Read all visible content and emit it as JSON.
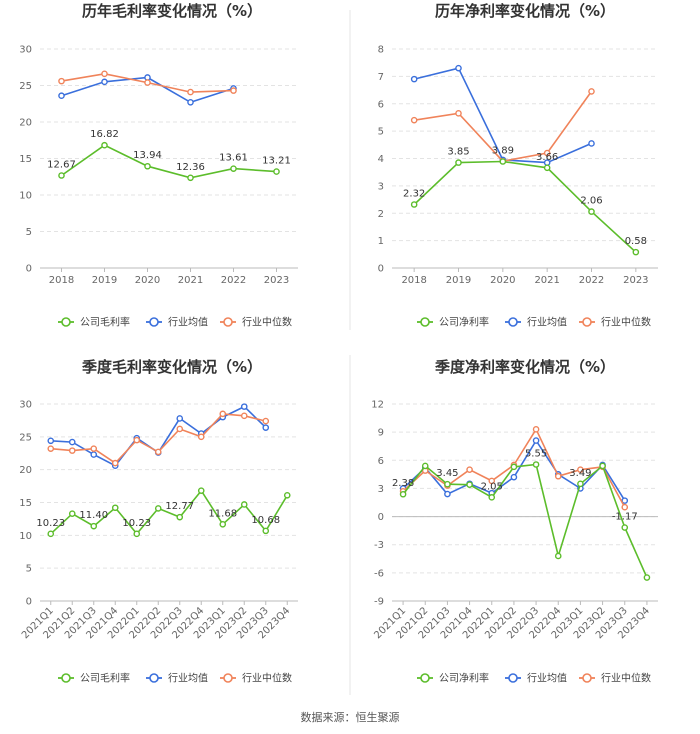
{
  "colors": {
    "company": "#5cbd2b",
    "average": "#3a6fdc",
    "median": "#f0835a"
  },
  "source": "数据来源：恒生聚源",
  "chart_data": [
    {
      "type": "line",
      "title": "历年毛利率变化情况（%）",
      "categories": [
        "2018",
        "2019",
        "2020",
        "2021",
        "2022",
        "2023"
      ],
      "ylim": [
        0,
        30
      ],
      "yticks": [
        0,
        5,
        10,
        15,
        20,
        25,
        30
      ],
      "grid": true,
      "legend": "bottom",
      "series": [
        {
          "name": "公司毛利率",
          "color": "#5cbd2b",
          "values": [
            12.67,
            16.82,
            13.94,
            12.36,
            13.61,
            13.21
          ],
          "labels": [
            "12.67",
            "16.82",
            "13.94",
            "12.36",
            "13.61",
            "13.21"
          ]
        },
        {
          "name": "行业均值",
          "color": "#3a6fdc",
          "values": [
            23.6,
            25.5,
            26.1,
            22.7,
            24.6,
            null
          ]
        },
        {
          "name": "行业中位数",
          "color": "#f0835a",
          "values": [
            25.6,
            26.6,
            25.4,
            24.1,
            24.3,
            null
          ]
        }
      ]
    },
    {
      "type": "line",
      "title": "历年净利率变化情况（%）",
      "categories": [
        "2018",
        "2019",
        "2020",
        "2021",
        "2022",
        "2023"
      ],
      "ylim": [
        0,
        8
      ],
      "yticks": [
        0,
        1,
        2,
        3,
        4,
        5,
        6,
        7,
        8
      ],
      "grid": true,
      "legend": "bottom",
      "series": [
        {
          "name": "公司净利率",
          "color": "#5cbd2b",
          "values": [
            2.32,
            3.85,
            3.89,
            3.66,
            2.06,
            0.58
          ],
          "labels": [
            "2.32",
            "3.85",
            "3.89",
            "3.66",
            "2.06",
            "0.58"
          ]
        },
        {
          "name": "行业均值",
          "color": "#3a6fdc",
          "values": [
            6.9,
            7.3,
            3.95,
            3.85,
            4.55,
            null
          ]
        },
        {
          "name": "行业中位数",
          "color": "#f0835a",
          "values": [
            5.4,
            5.65,
            3.9,
            4.2,
            6.45,
            null
          ]
        }
      ]
    },
    {
      "type": "line",
      "title": "季度毛利率变化情况（%）",
      "categories": [
        "2021Q1",
        "2021Q2",
        "2021Q3",
        "2021Q4",
        "2022Q1",
        "2022Q2",
        "2022Q3",
        "2022Q4",
        "2023Q1",
        "2023Q2",
        "2023Q3",
        "2023Q4"
      ],
      "ylim": [
        0,
        30
      ],
      "yticks": [
        0,
        5,
        10,
        15,
        20,
        25,
        30
      ],
      "grid": true,
      "legend": "bottom",
      "rotate_x": true,
      "series": [
        {
          "name": "公司毛利率",
          "color": "#5cbd2b",
          "values": [
            10.23,
            13.3,
            11.4,
            14.2,
            10.23,
            14.1,
            12.77,
            16.8,
            11.68,
            14.7,
            10.68,
            16.1
          ],
          "labels": [
            "10.23",
            "",
            "11.40",
            "",
            "10.23",
            "",
            "12.77",
            "",
            "11.68",
            "",
            "10.68",
            ""
          ]
        },
        {
          "name": "行业均值",
          "color": "#3a6fdc",
          "values": [
            24.4,
            24.2,
            22.3,
            20.6,
            24.8,
            22.6,
            27.8,
            25.5,
            28.0,
            29.6,
            26.4,
            null
          ]
        },
        {
          "name": "行业中位数",
          "color": "#f0835a",
          "values": [
            23.2,
            22.9,
            23.2,
            21.0,
            24.5,
            22.7,
            26.2,
            25.0,
            28.5,
            28.2,
            27.4,
            null
          ]
        }
      ]
    },
    {
      "type": "line",
      "title": "季度净利率变化情况（%）",
      "categories": [
        "2021Q1",
        "2021Q2",
        "2021Q3",
        "2021Q4",
        "2022Q1",
        "2022Q2",
        "2022Q3",
        "2022Q4",
        "2023Q1",
        "2023Q2",
        "2023Q3",
        "2023Q4"
      ],
      "ylim": [
        -9,
        12
      ],
      "yticks": [
        -9,
        -6,
        -3,
        0,
        3,
        6,
        9,
        12
      ],
      "grid": true,
      "legend": "bottom",
      "rotate_x": true,
      "series": [
        {
          "name": "公司净利率",
          "color": "#5cbd2b",
          "values": [
            2.38,
            5.4,
            3.45,
            3.4,
            2.05,
            5.3,
            5.55,
            -4.2,
            3.49,
            5.4,
            -1.17,
            -6.5
          ],
          "labels": [
            "2.38",
            "",
            "3.45",
            "",
            "2.05",
            "",
            "5.55",
            "",
            "3.49",
            "",
            "-1.17",
            ""
          ]
        },
        {
          "name": "行业均值",
          "color": "#3a6fdc",
          "values": [
            3.0,
            5.2,
            2.4,
            3.5,
            2.5,
            4.2,
            8.1,
            4.5,
            3.0,
            5.5,
            1.7,
            null
          ]
        },
        {
          "name": "行业中位数",
          "color": "#f0835a",
          "values": [
            2.7,
            4.9,
            3.3,
            5.0,
            3.8,
            5.5,
            9.3,
            4.3,
            5.0,
            5.3,
            1.0,
            null
          ]
        }
      ]
    }
  ]
}
